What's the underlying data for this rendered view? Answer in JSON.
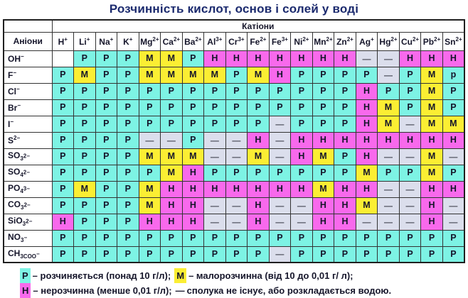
{
  "title": "Розчинність кислот, основ і солей у воді",
  "table": {
    "cations_group_label": "Катіони",
    "anions_label": "Аніони",
    "cations": [
      "H^+",
      "Li^+",
      "Na^+",
      "K^+",
      "Mg^2+",
      "Ca^2+",
      "Ba^2+",
      "Al^3+",
      "Cr^3+",
      "Fe^2+",
      "Fe^3+",
      "Ni^2+",
      "Mn^2+",
      "Zn^2+",
      "Ag^+",
      "Hg^2+",
      "Cu^2+",
      "Pb^2+",
      "Sn^2+"
    ],
    "anions": [
      "OH^−",
      "F^−",
      "Cl^−",
      "Br^−",
      "I^−",
      "S^2−",
      "SO_3^2−",
      "SO_4^2−",
      "PO_4^3−",
      "CO_3^2−",
      "SiO_3^2−",
      "NO_3^−",
      "CH_3COO^−"
    ],
    "cells": [
      [
        "",
        "Р",
        "Р",
        "Р",
        "М",
        "М",
        "Р",
        "Н",
        "Н",
        "Н",
        "Н",
        "Н",
        "Н",
        "Н",
        "—",
        "—",
        "Н",
        "Н",
        "Н"
      ],
      [
        "Р",
        "М",
        "Р",
        "Р",
        "М",
        "М",
        "М",
        "М",
        "Р",
        "М",
        "Н",
        "Р",
        "Р",
        "Р",
        "Р",
        "—",
        "Р",
        "М",
        "р"
      ],
      [
        "Р",
        "Р",
        "Р",
        "Р",
        "Р",
        "Р",
        "Р",
        "Р",
        "Р",
        "Р",
        "Р",
        "Р",
        "Р",
        "Р",
        "Н",
        "Р",
        "Р",
        "М",
        "Р"
      ],
      [
        "Р",
        "Р",
        "Р",
        "Р",
        "Р",
        "Р",
        "Р",
        "Р",
        "Р",
        "Р",
        "Р",
        "Р",
        "Р",
        "Р",
        "Н",
        "М",
        "Р",
        "М",
        "Р"
      ],
      [
        "Р",
        "Р",
        "Р",
        "Р",
        "Р",
        "Р",
        "Р",
        "Р",
        "Р",
        "Р",
        "—",
        "Р",
        "Р",
        "Р",
        "Н",
        "М",
        "—",
        "М",
        "М"
      ],
      [
        "Р",
        "Р",
        "Р",
        "Р",
        "—",
        "—",
        "Р",
        "—",
        "—",
        "Н",
        "—",
        "Н",
        "Н",
        "Н",
        "Н",
        "Н",
        "Н",
        "Н",
        "Н"
      ],
      [
        "Р",
        "Р",
        "Р",
        "Р",
        "М",
        "М",
        "М",
        "—",
        "—",
        "М",
        "—",
        "Н",
        "М",
        "Р",
        "Н",
        "—",
        "—",
        "М",
        "—"
      ],
      [
        "Р",
        "Р",
        "Р",
        "Р",
        "Р",
        "М",
        "Н",
        "Р",
        "Р",
        "Р",
        "Р",
        "Р",
        "Р",
        "Р",
        "М",
        "Р",
        "Р",
        "М",
        "Р"
      ],
      [
        "Р",
        "М",
        "Р",
        "Р",
        "М",
        "Н",
        "Н",
        "Н",
        "Н",
        "Н",
        "Н",
        "Н",
        "М",
        "Н",
        "Н",
        "—",
        "—",
        "Н",
        "Н"
      ],
      [
        "Р",
        "Р",
        "Р",
        "Р",
        "М",
        "Н",
        "Н",
        "—",
        "—",
        "Н",
        "—",
        "—",
        "Н",
        "Н",
        "М",
        "—",
        "—",
        "Н",
        "—"
      ],
      [
        "Н",
        "Р",
        "Р",
        "Р",
        "Н",
        "Н",
        "Н",
        "—",
        "—",
        "Н",
        "—",
        "—",
        "Н",
        "Н",
        "—",
        "—",
        "—",
        "Н",
        "—"
      ],
      [
        "Р",
        "Р",
        "Р",
        "Р",
        "Р",
        "Р",
        "Р",
        "Р",
        "Р",
        "Р",
        "Р",
        "Р",
        "Р",
        "Р",
        "Р",
        "Р",
        "Р",
        "Р",
        "Р"
      ],
      [
        "Р",
        "Р",
        "Р",
        "Р",
        "Р",
        "Р",
        "Р",
        "Р",
        "Р",
        "Р",
        "—",
        "Р",
        "Р",
        "Р",
        "Р",
        "Р",
        "Р",
        "Р",
        "Р"
      ]
    ]
  },
  "legend": {
    "lines": [
      {
        "items": [
          {
            "key": "Р",
            "class": "p",
            "text": "– розчиняється (понад 10 г/л);"
          },
          {
            "key": "М",
            "class": "m",
            "text": "– малорозчинна (від 10 до 0,01 г/ л);"
          }
        ]
      },
      {
        "items": [
          {
            "key": "Н",
            "class": "n",
            "text": "– нерозчинна (менше 0,01 г/л);"
          },
          {
            "key": "—",
            "class": "none",
            "text": "сполука не існує, або розкладається водою."
          }
        ]
      }
    ]
  },
  "colors": {
    "soluble": "#7df3e4",
    "slightly_soluble": "#fbee33",
    "insoluble": "#f869ec",
    "not_exists": "#dbdeec",
    "title": "#1b2a6e"
  },
  "value_classes": {
    "Р": "p",
    "р": "p",
    "М": "m",
    "Н": "n",
    "—": "x",
    "": "blank"
  }
}
